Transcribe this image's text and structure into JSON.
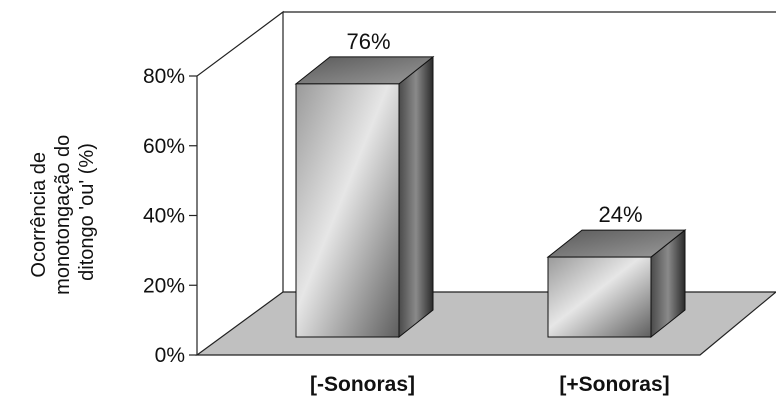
{
  "chart_data": {
    "type": "bar",
    "categories": [
      "[-Sonoras]",
      "[+Sonoras]"
    ],
    "values": [
      76,
      24
    ],
    "data_labels": [
      "76%",
      "24%"
    ],
    "ylabel_lines": [
      "Ocorrência de",
      "monotongação do",
      "ditongo 'ou' (%)"
    ],
    "ylim": [
      0,
      80
    ],
    "yticks": [
      "0%",
      "20%",
      "40%",
      "60%",
      "80%"
    ],
    "grid": false,
    "legend": "none",
    "colors": {
      "floor": "#c0c0c0",
      "bar_front_light": "#e8e8e8",
      "bar_front_dark": "#666666",
      "bar_side": "#3a3a3a",
      "bar_top": "#7a7a7a"
    }
  }
}
